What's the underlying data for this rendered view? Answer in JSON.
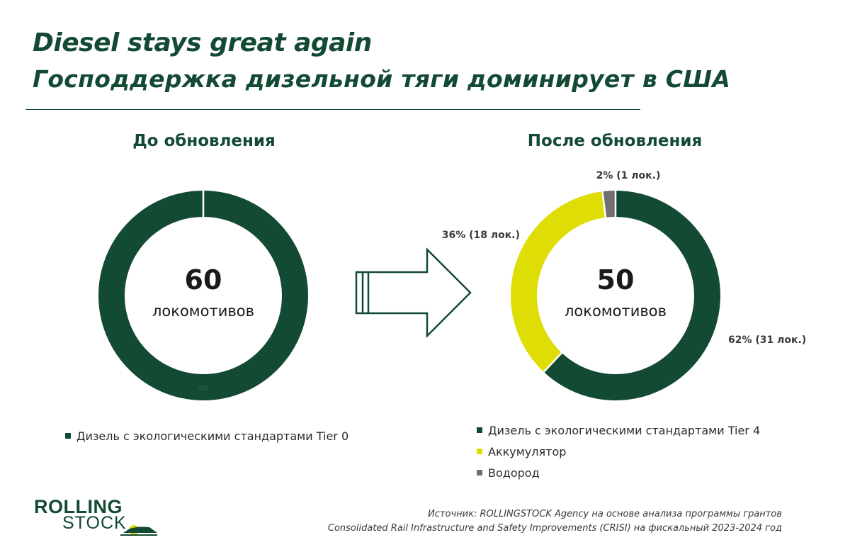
{
  "header": {
    "title": "Diesel stays great again",
    "subtitle": "Господдержка дизельной тяги доминирует в США"
  },
  "chart_data": [
    {
      "type": "pie",
      "donut": true,
      "title": "До обновления",
      "center_value": "60",
      "center_label": "локомотивов",
      "slices": [
        {
          "label": "Дизель с экологическими стандартами Tier 0",
          "value": 60,
          "color": "#134a33",
          "data_label": "60"
        }
      ],
      "legend": [
        "Дизель с экологическими стандартами Tier 0"
      ],
      "legend_position": "bottom"
    },
    {
      "type": "pie",
      "donut": true,
      "title": "После обновления",
      "center_value": "50",
      "center_label": "локомотивов",
      "slices": [
        {
          "label": "Дизель с экологическими стандартами Tier 4",
          "value": 31,
          "color": "#134a33",
          "data_label": "62% (31 лок.)"
        },
        {
          "label": "Аккумулятор",
          "value": 18,
          "color": "#dedd06",
          "data_label": "36% (18 лок.)"
        },
        {
          "label": "Водород",
          "value": 1,
          "color": "#6f6f6f",
          "data_label": "2% (1 лок.)"
        }
      ],
      "legend": [
        "Дизель с экологическими стандартами Tier 4",
        "Аккумулятор",
        "Водород"
      ],
      "legend_position": "bottom"
    }
  ],
  "logo": {
    "line1": "ROLLING",
    "line2": "STOCK"
  },
  "source": {
    "line1": "Источник: ROLLINGSTOCK Agency на основе анализа программы грантов",
    "line2": "Consolidated Rail Infrastructure and Safety Improvements (CRISI) на фискальный 2023-2024 год"
  },
  "colors": {
    "brand": "#134a33",
    "accent": "#dedd06",
    "neutral": "#6f6f6f"
  }
}
